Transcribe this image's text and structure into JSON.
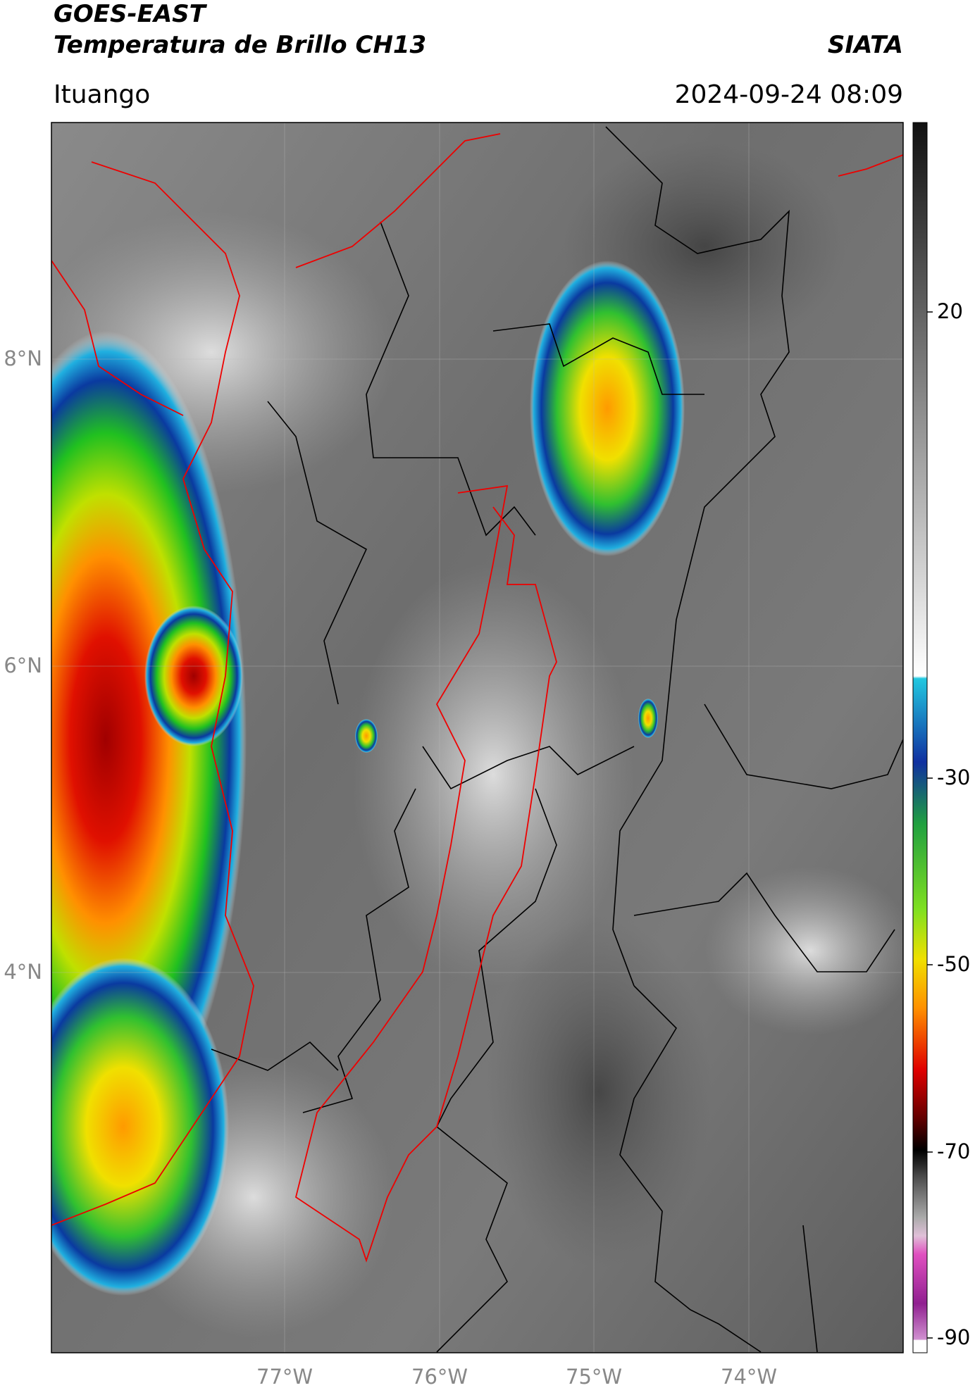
{
  "header": {
    "satellite": "GOES-EAST",
    "product": "Temperatura de Brillo CH13",
    "agency": "SIATA",
    "region": "Ituango",
    "datetime": "2024-09-24 08:09"
  },
  "map": {
    "lat_labels": [
      "8°N",
      "6°N",
      "4°N"
    ],
    "lon_labels": [
      "77°W",
      "76°W",
      "75°W",
      "74°W"
    ]
  },
  "colorbar": {
    "labels": [
      "20",
      "-30",
      "-50",
      "-70",
      "-90"
    ]
  }
}
